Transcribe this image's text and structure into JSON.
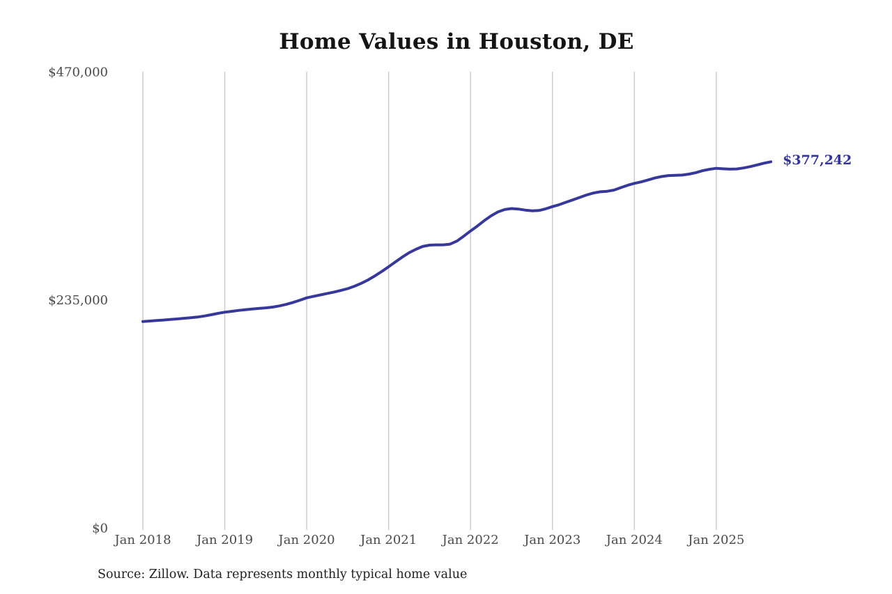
{
  "page": {
    "background": "#ffffff"
  },
  "chart": {
    "title": "Home Values in Houston, DE",
    "source_note": "Source: Zillow. Data represents monthly typical home value",
    "colors": {
      "line": "#38389b",
      "end_label": "#33339b",
      "gridline": "#c9c9c9",
      "axis_text": "#4a4a4a",
      "title_text": "#141414",
      "source_text": "#1f1f1f"
    }
  },
  "chart_data": {
    "type": "line",
    "title": "Home Values in Houston, DE",
    "unit": "USD",
    "grid": "vertical-only",
    "legend": "none",
    "ylim": [
      0,
      470000
    ],
    "y_ticks": [
      0,
      235000,
      470000
    ],
    "y_tick_labels": [
      "$0",
      "$235,000",
      "$470,000"
    ],
    "x_tick_labels": [
      "Jan 2018",
      "Jan 2019",
      "Jan 2020",
      "Jan 2021",
      "Jan 2022",
      "Jan 2023",
      "Jan 2024",
      "Jan 2025"
    ],
    "end_annotation": {
      "text": "$377,242",
      "value": 377242,
      "month": "Sep 2025"
    },
    "series": [
      {
        "name": "Monthly typical home value",
        "start_month": "2018-01",
        "end_month": "2025-09",
        "values": [
          212600,
          213100,
          213600,
          214100,
          214700,
          215300,
          215900,
          216500,
          217200,
          218300,
          219600,
          221000,
          222200,
          223100,
          224000,
          224800,
          225500,
          226100,
          226700,
          227500,
          228700,
          230300,
          232300,
          234600,
          237000,
          238500,
          240000,
          241500,
          243000,
          244600,
          246500,
          249000,
          252000,
          255500,
          259700,
          264200,
          269000,
          274000,
          279000,
          283500,
          287000,
          290000,
          291300,
          291600,
          291600,
          292300,
          295500,
          300500,
          305900,
          311000,
          316500,
          321500,
          325500,
          328000,
          329000,
          328500,
          327400,
          326700,
          327000,
          328700,
          331000,
          333000,
          335500,
          338000,
          340500,
          343000,
          345000,
          346300,
          346800,
          348000,
          350500,
          353000,
          355000,
          356500,
          358500,
          360500,
          362000,
          363000,
          363300,
          363500,
          364500,
          366000,
          368000,
          369500,
          370500,
          370000,
          369600,
          369800,
          370800,
          372300,
          374000,
          375800,
          377242
        ]
      }
    ]
  }
}
